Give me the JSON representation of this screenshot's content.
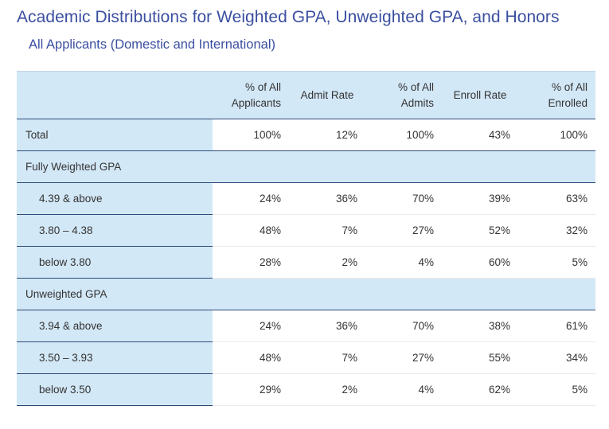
{
  "title": "Academic Distributions for Weighted GPA, Unweighted GPA, and Honors",
  "subtitle": "All Applicants (Domestic and International)",
  "table": {
    "headers": {
      "col1": [
        "% of All",
        "Applicants"
      ],
      "col2": "Admit Rate",
      "col3": [
        "% of All",
        "Admits"
      ],
      "col4": "Enroll Rate",
      "col5": [
        "% of All",
        "Enrolled"
      ]
    },
    "total": {
      "label": "Total",
      "values": [
        "100%",
        "12%",
        "100%",
        "43%",
        "100%"
      ]
    },
    "groups": [
      {
        "label": "Fully Weighted GPA",
        "rows": [
          {
            "label": "4.39 & above",
            "values": [
              "24%",
              "36%",
              "70%",
              "39%",
              "63%"
            ]
          },
          {
            "label": "3.80 – 4.38",
            "values": [
              "48%",
              "7%",
              "27%",
              "52%",
              "32%"
            ]
          },
          {
            "label": "below 3.80",
            "values": [
              "28%",
              "2%",
              "4%",
              "60%",
              "5%"
            ]
          }
        ]
      },
      {
        "label": "Unweighted GPA",
        "rows": [
          {
            "label": "3.94 & above",
            "values": [
              "24%",
              "36%",
              "70%",
              "38%",
              "61%"
            ]
          },
          {
            "label": "3.50 – 3.93",
            "values": [
              "48%",
              "7%",
              "27%",
              "55%",
              "34%"
            ]
          },
          {
            "label": "below 3.50",
            "values": [
              "29%",
              "2%",
              "4%",
              "62%",
              "5%"
            ]
          }
        ]
      }
    ]
  },
  "colors": {
    "title": "#3b4fa0",
    "header_background": "#d3e8f7",
    "rule": "#2e4a78"
  }
}
